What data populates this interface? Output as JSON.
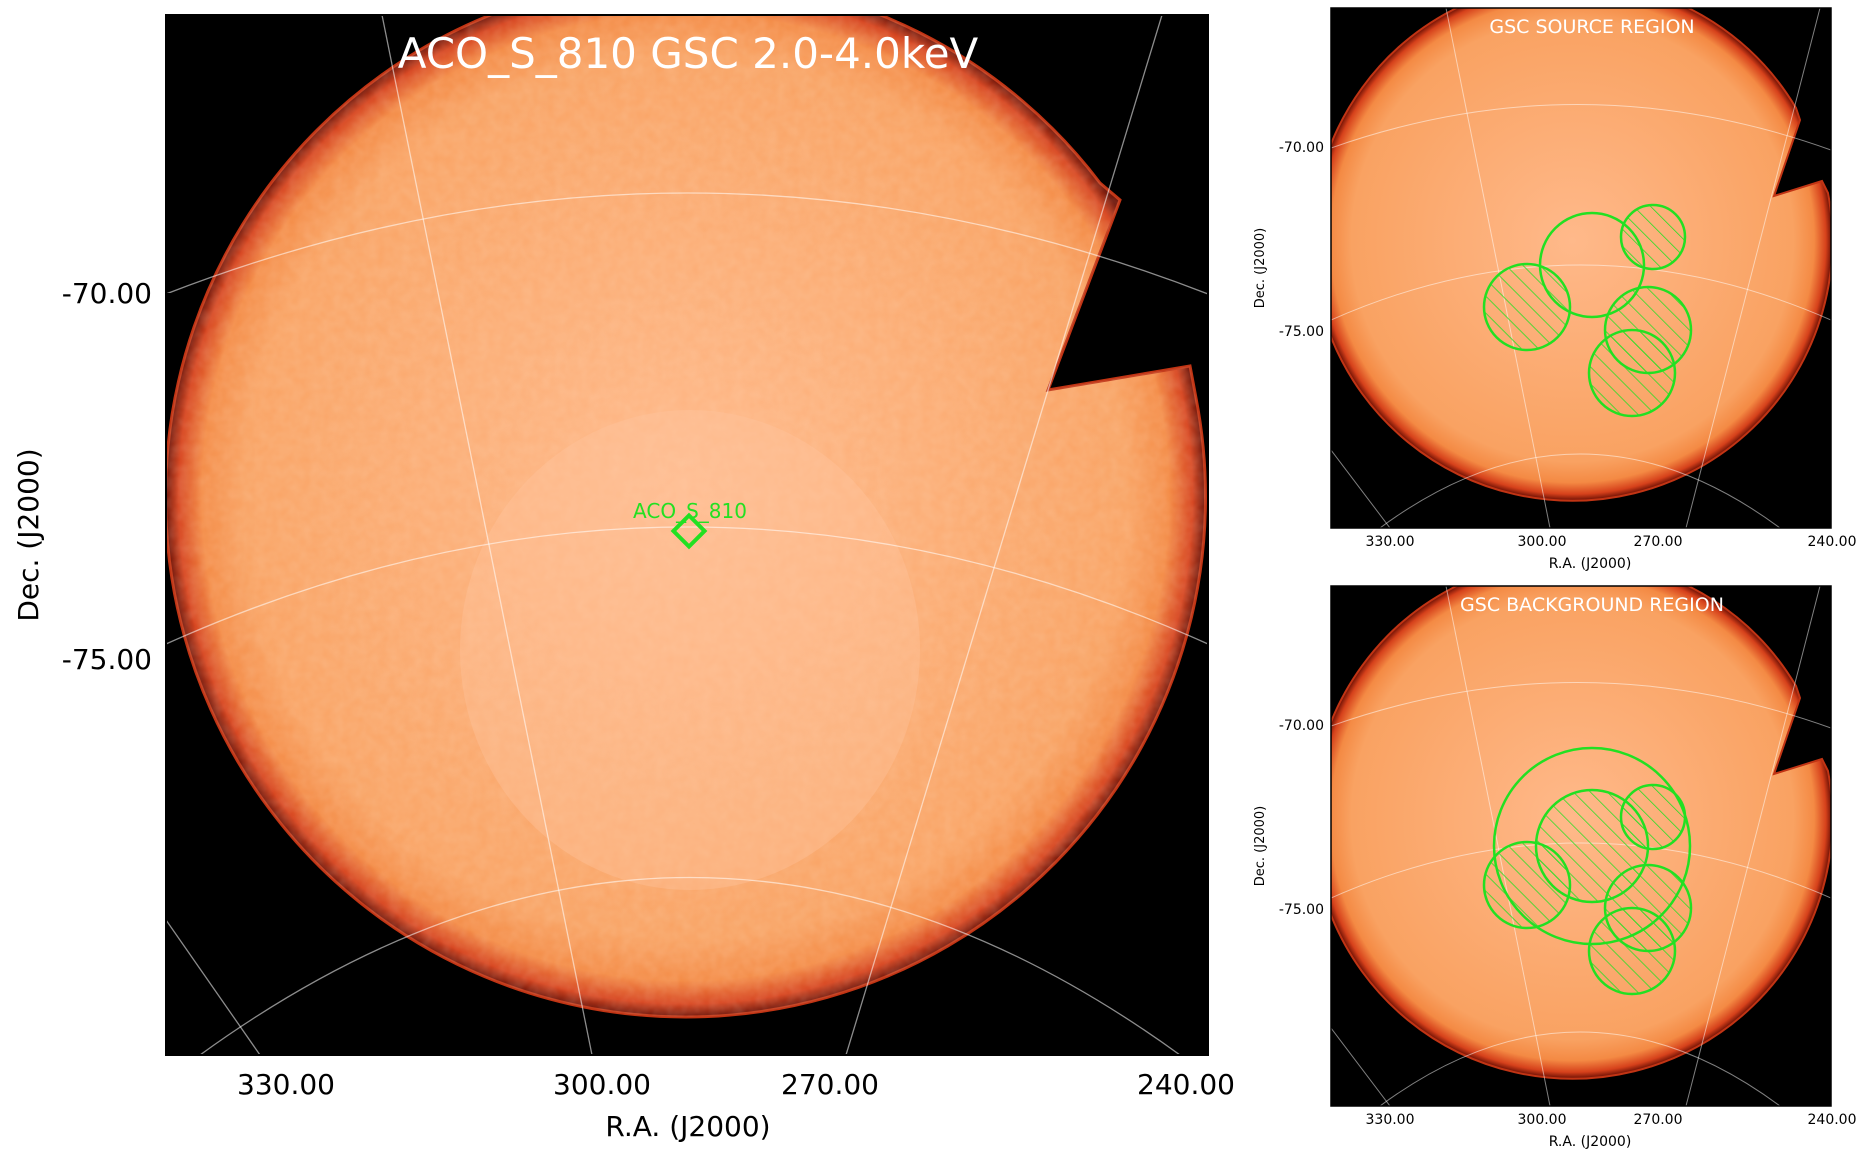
{
  "main": {
    "title": "ACO_S_810 GSC 2.0-4.0keV",
    "xlabel": "R.A. (J2000)",
    "ylabel": "Dec. (J2000)",
    "xticks": [
      "330.00",
      "300.00",
      "270.00",
      "240.00"
    ],
    "yticks": [
      "-70.00",
      "-75.00"
    ],
    "marker_label": "ACO_S_810",
    "marker_color": "#22e022"
  },
  "source_panel": {
    "title": "GSC SOURCE REGION",
    "xlabel": "R.A. (J2000)",
    "ylabel": "Dec. (J2000)",
    "xticks": [
      "330.00",
      "300.00",
      "270.00",
      "240.00"
    ],
    "yticks": [
      "-70.00",
      "-75.00"
    ]
  },
  "background_panel": {
    "title": "GSC BACKGROUND REGION",
    "xlabel": "R.A. (J2000)",
    "ylabel": "Dec. (J2000)",
    "xticks": [
      "330.00",
      "300.00",
      "270.00",
      "240.00"
    ],
    "yticks": [
      "-70.00",
      "-75.00"
    ]
  },
  "colors": {
    "field": "#f7a060",
    "edge": "#c8341a",
    "sky": "#000000",
    "region": "#22e022",
    "grid": "#ffffff"
  }
}
